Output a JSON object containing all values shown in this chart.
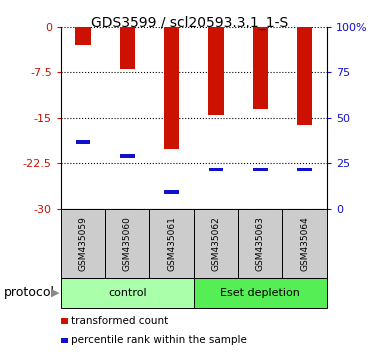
{
  "title": "GDS3599 / scl20593.3.1_1-S",
  "samples": [
    "GSM435059",
    "GSM435060",
    "GSM435061",
    "GSM435062",
    "GSM435063",
    "GSM435064"
  ],
  "bar_values": [
    -3.0,
    -7.0,
    -20.2,
    -14.5,
    -13.5,
    -16.2
  ],
  "blue_marker_values": [
    -19.0,
    -21.3,
    -27.2,
    -23.5,
    -23.5,
    -23.5
  ],
  "ylim_left": [
    -30,
    0
  ],
  "yticks_left": [
    0,
    -7.5,
    -15,
    -22.5,
    -30
  ],
  "ytick_labels_left": [
    "0",
    "-7.5",
    "-15",
    "-22.5",
    "-30"
  ],
  "ylim_right": [
    0,
    100
  ],
  "yticks_right": [
    0,
    25,
    50,
    75,
    100
  ],
  "ytick_labels_right": [
    "0",
    "25",
    "50",
    "75",
    "100%"
  ],
  "bar_color": "#cc1100",
  "blue_color": "#1111cc",
  "group_labels": [
    "control",
    "Eset depletion"
  ],
  "group_colors": [
    "#aaffaa",
    "#55ee55"
  ],
  "protocol_label": "protocol",
  "legend_items": [
    "transformed count",
    "percentile rank within the sample"
  ],
  "tick_area_color": "#cccccc",
  "bar_width": 0.35
}
